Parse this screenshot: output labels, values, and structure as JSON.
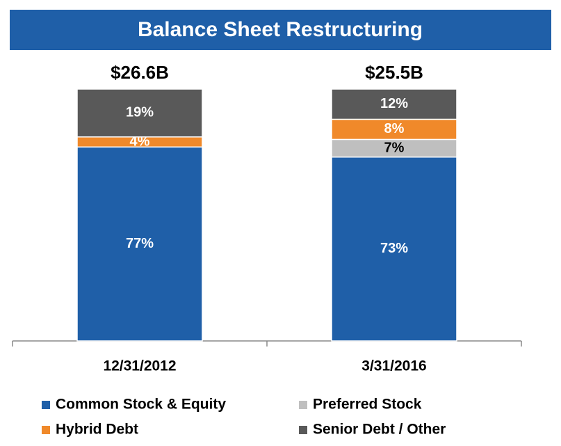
{
  "chart_data": {
    "type": "stacked-bar",
    "title": "Balance Sheet Restructuring",
    "categories": [
      "12/31/2012",
      "3/31/2016"
    ],
    "totals": {
      "values": [
        26.6,
        25.5
      ],
      "value_labels": [
        "$26.6B",
        "$25.5B"
      ]
    },
    "series": [
      {
        "name": "Common Stock & Equity",
        "color": "#1f5fa8",
        "label_color": "#ffffff",
        "values": [
          77,
          73
        ],
        "value_labels": [
          "77%",
          "73%"
        ]
      },
      {
        "name": "Preferred Stock",
        "color": "#bfbfbf",
        "label_color": "#000000",
        "values": [
          null,
          7
        ],
        "value_labels": [
          null,
          "7%"
        ]
      },
      {
        "name": "Hybrid Debt",
        "color": "#f0892a",
        "label_color": "#ffffff",
        "values": [
          4,
          8
        ],
        "value_labels": [
          "4%",
          "8%"
        ]
      },
      {
        "name": "Senior Debt / Other",
        "color": "#595959",
        "label_color": "#ffffff",
        "values": [
          19,
          12
        ],
        "value_labels": [
          "19%",
          "12%"
        ]
      }
    ],
    "ylim": [
      0,
      100
    ]
  }
}
